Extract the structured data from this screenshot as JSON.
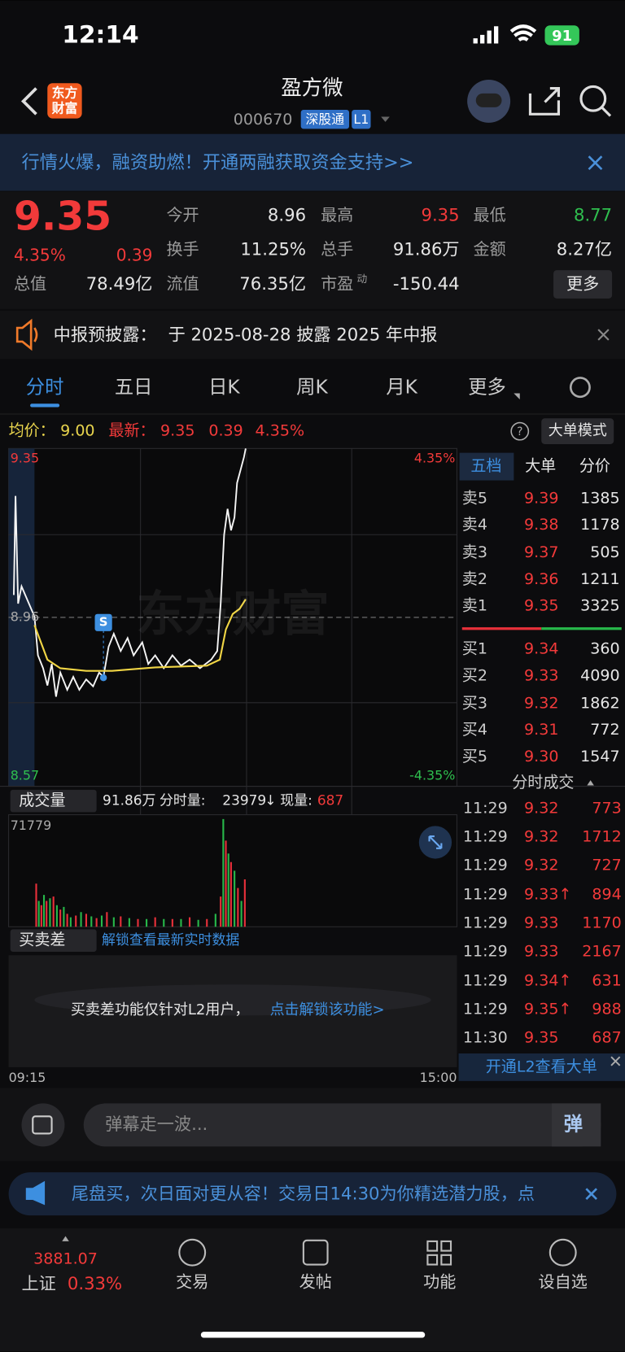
{
  "status": {
    "time": "12:14",
    "battery": "91"
  },
  "header": {
    "logo": [
      "东方",
      "财富"
    ],
    "title": "盈方微",
    "code": "000670",
    "tag": "深股通",
    "level": "L1"
  },
  "banner": "行情火爆，融资助燃！开通两融获取资金支持>>",
  "quote": {
    "price": "9.35",
    "change_pct": "4.35%",
    "change": "0.39",
    "open": {
      "label": "今开",
      "value": "8.96"
    },
    "high": {
      "label": "最高",
      "value": "9.35"
    },
    "low": {
      "label": "最低",
      "value": "8.77"
    },
    "turnover": {
      "label": "换手",
      "value": "11.25%"
    },
    "volume": {
      "label": "总手",
      "value": "91.86万"
    },
    "amount": {
      "label": "金额",
      "value": "8.27亿"
    },
    "market_cap": {
      "label": "总值",
      "value": "78.49亿"
    },
    "float_cap": {
      "label": "流值",
      "value": "76.35亿"
    },
    "pe": {
      "label": "市盈",
      "sup": "动",
      "value": "-150.44"
    },
    "more": "更多"
  },
  "notice": {
    "label": "中报预披露：",
    "text": "于 2025-08-28 披露 2025 年中报"
  },
  "tabs": [
    "分时",
    "五日",
    "日K",
    "周K",
    "月K",
    "更多"
  ],
  "info": {
    "avg_label": "均价：",
    "avg": "9.00",
    "last_label": "最新：",
    "last": "9.35",
    "change": "0.39",
    "pct": "4.35%",
    "help": "?",
    "mode": "大单模式"
  },
  "chart": {
    "high": "9.35",
    "high_pct": "4.35%",
    "mid": "8.96",
    "low": "8.57",
    "low_pct": "-4.35%",
    "watermark": "东方财富",
    "marker": "S",
    "start": "09:15",
    "end": "15:00"
  },
  "volume": {
    "selector": "成交量",
    "total": "91.86万",
    "minute_label": "分时量:",
    "minute": "23979",
    "arrow": "↓",
    "current_label": "现量:",
    "current": "687",
    "max": "71779"
  },
  "spread": {
    "selector": "买卖差",
    "unlock": "解锁查看最新实时数据",
    "note": "买卖差功能仅针对L2用户，",
    "link": "点击解锁该功能>"
  },
  "book": {
    "tabs": [
      "五档",
      "大单",
      "分价"
    ],
    "asks": [
      {
        "level": "卖5",
        "price": "9.39",
        "volume": 1385
      },
      {
        "level": "卖4",
        "price": "9.38",
        "volume": 1178
      },
      {
        "level": "卖3",
        "price": "9.37",
        "volume": 505
      },
      {
        "level": "卖2",
        "price": "9.36",
        "volume": 1211
      },
      {
        "level": "卖1",
        "price": "9.35",
        "volume": 3325
      }
    ],
    "bids": [
      {
        "level": "买1",
        "price": "9.34",
        "volume": 360
      },
      {
        "level": "买2",
        "price": "9.33",
        "volume": 4090
      },
      {
        "level": "买3",
        "price": "9.32",
        "volume": 1862
      },
      {
        "level": "买4",
        "price": "9.31",
        "volume": 772
      },
      {
        "level": "买5",
        "price": "9.30",
        "volume": 1547
      }
    ]
  },
  "trades": {
    "title": "分时成交",
    "rows": [
      {
        "time": "11:29",
        "price": "9.32",
        "volume": 773
      },
      {
        "time": "11:29",
        "price": "9.32",
        "volume": 1712
      },
      {
        "time": "11:29",
        "price": "9.32",
        "volume": 727
      },
      {
        "time": "11:29",
        "price": "9.33↑",
        "volume": 894
      },
      {
        "time": "11:29",
        "price": "9.33",
        "volume": 1170
      },
      {
        "time": "11:29",
        "price": "9.33",
        "volume": 2167
      },
      {
        "time": "11:29",
        "price": "9.34↑",
        "volume": 631
      },
      {
        "time": "11:29",
        "price": "9.35↑",
        "volume": 988
      },
      {
        "time": "11:30",
        "price": "9.35",
        "volume": 687
      }
    ],
    "footer": "开通L2查看大单"
  },
  "comment": {
    "placeholder": "弹幕走一波...",
    "button": "弹"
  },
  "ad": "尾盘买，次日面对更从容！交易日14:30为你精选潜力股，点",
  "nav": {
    "index_value": "3881.07",
    "index_name": "上证",
    "index_pct": "0.33%",
    "items": [
      "交易",
      "发帖",
      "功能",
      "设自选"
    ]
  }
}
